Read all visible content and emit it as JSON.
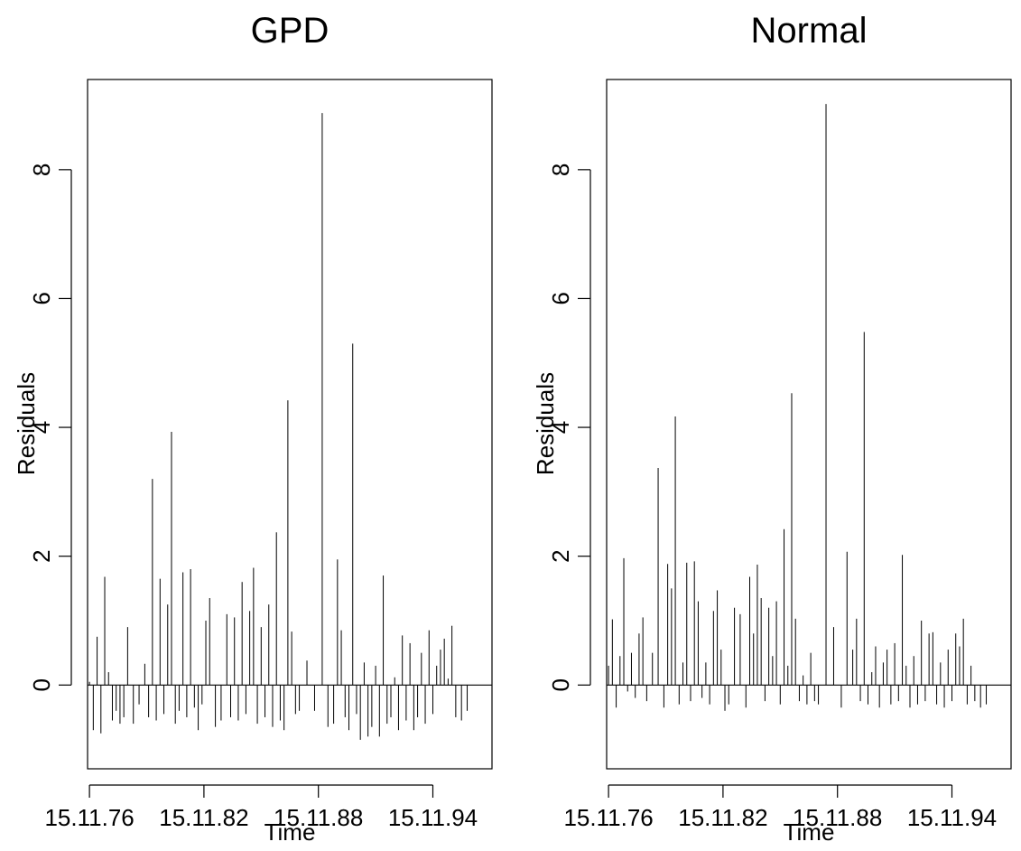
{
  "chart_data": [
    {
      "type": "line",
      "style": "histogram-spikes",
      "title": "GPD",
      "xlabel": "Time",
      "ylabel": "Residuals",
      "xlim": [
        1975.9,
        1997.1
      ],
      "ylim": [
        -1.3,
        9.4
      ],
      "x_ticks": [
        {
          "value": 1976,
          "label": "15.11.76"
        },
        {
          "value": 1982,
          "label": "15.11.82"
        },
        {
          "value": 1988,
          "label": "15.11.88"
        },
        {
          "value": 1994,
          "label": "15.11.94"
        }
      ],
      "y_ticks": [
        {
          "value": 0,
          "label": "0"
        },
        {
          "value": 2,
          "label": "2"
        },
        {
          "value": 4,
          "label": "4"
        },
        {
          "value": 6,
          "label": "6"
        },
        {
          "value": 8,
          "label": "8"
        }
      ],
      "reference_line_y": 0,
      "x": [
        1976.0,
        1976.2,
        1976.4,
        1976.6,
        1976.8,
        1977.0,
        1977.2,
        1977.4,
        1977.6,
        1977.8,
        1978.0,
        1978.3,
        1978.6,
        1978.9,
        1979.1,
        1979.3,
        1979.5,
        1979.7,
        1979.9,
        1980.1,
        1980.3,
        1980.5,
        1980.7,
        1980.9,
        1981.1,
        1981.3,
        1981.5,
        1981.7,
        1981.9,
        1982.1,
        1982.3,
        1982.6,
        1982.9,
        1983.2,
        1983.4,
        1983.6,
        1983.8,
        1984.0,
        1984.2,
        1984.4,
        1984.6,
        1984.8,
        1985.0,
        1985.2,
        1985.4,
        1985.6,
        1985.8,
        1986.0,
        1986.2,
        1986.4,
        1986.6,
        1986.8,
        1987.0,
        1987.4,
        1987.8,
        1988.2,
        1988.5,
        1988.8,
        1989.0,
        1989.2,
        1989.4,
        1989.6,
        1989.8,
        1990.0,
        1990.2,
        1990.4,
        1990.6,
        1990.8,
        1991.0,
        1991.2,
        1991.4,
        1991.6,
        1991.8,
        1992.0,
        1992.2,
        1992.4,
        1992.6,
        1992.8,
        1993.0,
        1993.2,
        1993.4,
        1993.6,
        1993.8,
        1994.0,
        1994.2,
        1994.4,
        1994.6,
        1994.8,
        1995.0,
        1995.2,
        1995.5,
        1995.8
      ],
      "y": [
        0.05,
        -0.7,
        0.75,
        -0.75,
        1.68,
        0.2,
        -0.55,
        -0.4,
        -0.6,
        -0.5,
        0.9,
        -0.6,
        -0.3,
        0.33,
        -0.5,
        3.2,
        -0.55,
        1.65,
        -0.45,
        1.25,
        3.93,
        -0.6,
        -0.4,
        1.75,
        -0.5,
        1.8,
        -0.35,
        -0.7,
        -0.3,
        1.0,
        1.35,
        -0.65,
        -0.55,
        1.1,
        -0.5,
        1.05,
        -0.55,
        1.6,
        -0.45,
        1.15,
        1.82,
        -0.6,
        0.9,
        -0.5,
        1.25,
        -0.65,
        2.37,
        -0.55,
        -0.7,
        4.42,
        0.83,
        -0.45,
        -0.4,
        0.38,
        -0.4,
        8.88,
        -0.65,
        -0.6,
        1.95,
        0.85,
        -0.5,
        -0.7,
        5.3,
        -0.45,
        -0.85,
        0.35,
        -0.8,
        -0.65,
        0.3,
        -0.8,
        1.7,
        -0.6,
        -0.5,
        0.12,
        -0.7,
        0.77,
        -0.55,
        0.65,
        -0.7,
        -0.5,
        0.5,
        -0.6,
        0.85,
        -0.45,
        0.3,
        0.55,
        0.72,
        0.1,
        0.92,
        -0.5,
        -0.55,
        -0.4
      ]
    },
    {
      "type": "line",
      "style": "histogram-spikes",
      "title": "Normal",
      "xlabel": "Time",
      "ylabel": "Residuals",
      "xlim": [
        1975.9,
        1997.1
      ],
      "ylim": [
        -1.3,
        9.4
      ],
      "x_ticks": [
        {
          "value": 1976,
          "label": "15.11.76"
        },
        {
          "value": 1982,
          "label": "15.11.82"
        },
        {
          "value": 1988,
          "label": "15.11.88"
        },
        {
          "value": 1994,
          "label": "15.11.94"
        }
      ],
      "y_ticks": [
        {
          "value": 0,
          "label": "0"
        },
        {
          "value": 2,
          "label": "2"
        },
        {
          "value": 4,
          "label": "4"
        },
        {
          "value": 6,
          "label": "6"
        },
        {
          "value": 8,
          "label": "8"
        }
      ],
      "reference_line_y": 0,
      "x": [
        1976.0,
        1976.2,
        1976.4,
        1976.6,
        1976.8,
        1977.0,
        1977.2,
        1977.4,
        1977.6,
        1977.8,
        1978.0,
        1978.3,
        1978.6,
        1978.9,
        1979.1,
        1979.3,
        1979.5,
        1979.7,
        1979.9,
        1980.1,
        1980.3,
        1980.5,
        1980.7,
        1980.9,
        1981.1,
        1981.3,
        1981.5,
        1981.7,
        1981.9,
        1982.1,
        1982.3,
        1982.6,
        1982.9,
        1983.2,
        1983.4,
        1983.6,
        1983.8,
        1984.0,
        1984.2,
        1984.4,
        1984.6,
        1984.8,
        1985.0,
        1985.2,
        1985.4,
        1985.6,
        1985.8,
        1986.0,
        1986.2,
        1986.4,
        1986.6,
        1986.8,
        1987.0,
        1987.4,
        1987.8,
        1988.2,
        1988.5,
        1988.8,
        1989.0,
        1989.2,
        1989.4,
        1989.6,
        1989.8,
        1990.0,
        1990.2,
        1990.4,
        1990.6,
        1990.8,
        1991.0,
        1991.2,
        1991.4,
        1991.6,
        1991.8,
        1992.0,
        1992.2,
        1992.4,
        1992.6,
        1992.8,
        1993.0,
        1993.2,
        1993.4,
        1993.6,
        1993.8,
        1994.0,
        1994.2,
        1994.4,
        1994.6,
        1994.8,
        1995.0,
        1995.2,
        1995.5,
        1995.8
      ],
      "y": [
        0.3,
        1.02,
        -0.35,
        0.45,
        1.97,
        -0.1,
        0.5,
        -0.2,
        0.8,
        1.05,
        -0.25,
        0.5,
        3.37,
        -0.35,
        1.88,
        1.5,
        4.17,
        -0.3,
        0.35,
        1.9,
        -0.25,
        1.92,
        1.3,
        -0.2,
        0.35,
        -0.3,
        1.15,
        1.47,
        0.55,
        -0.4,
        -0.3,
        1.2,
        1.1,
        -0.35,
        1.68,
        0.8,
        1.87,
        1.35,
        -0.25,
        1.2,
        0.45,
        1.3,
        -0.3,
        2.42,
        0.3,
        4.53,
        1.03,
        -0.25,
        0.15,
        -0.3,
        0.5,
        -0.25,
        -0.3,
        9.02,
        0.9,
        -0.35,
        2.07,
        0.55,
        1.03,
        -0.25,
        5.48,
        -0.3,
        0.2,
        0.6,
        -0.35,
        0.35,
        0.55,
        -0.3,
        0.65,
        -0.25,
        2.02,
        0.3,
        -0.35,
        0.45,
        -0.3,
        1.0,
        -0.25,
        0.8,
        0.82,
        -0.3,
        0.35,
        -0.35,
        0.55,
        -0.25,
        0.8,
        0.6,
        1.03,
        -0.3,
        0.3,
        -0.25,
        -0.35,
        -0.3
      ]
    }
  ]
}
